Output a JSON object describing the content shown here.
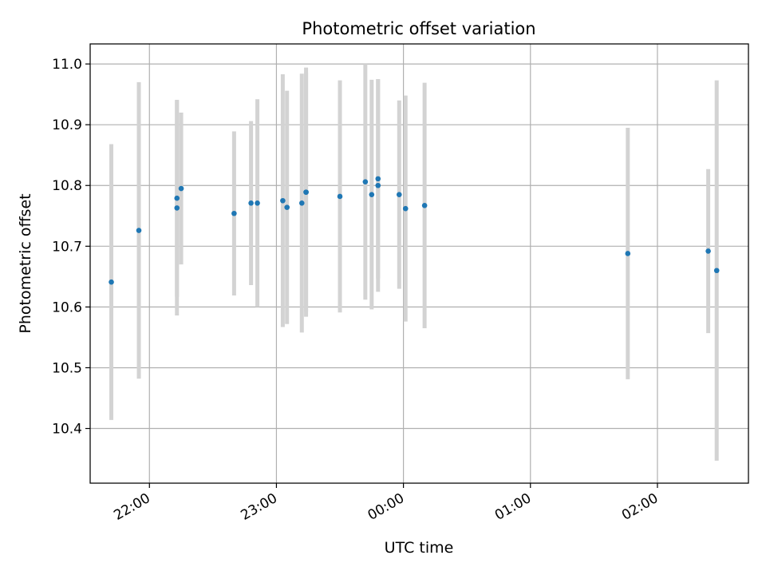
{
  "chart_data": {
    "type": "scatter",
    "title": "Photometric offset variation",
    "xlabel": "UTC time",
    "ylabel": "Photometric offset",
    "x_unit": "UTC clock time (h:mm, wraps after midnight)",
    "xlim": [
      "21:32",
      "02:43"
    ],
    "ylim": [
      10.31,
      11.033
    ],
    "grid": true,
    "legend": "none",
    "x_ticks": [
      "22:00",
      "23:00",
      "00:00",
      "01:00",
      "02:00"
    ],
    "y_ticks": [
      "10.4",
      "10.5",
      "10.6",
      "10.7",
      "10.8",
      "10.9",
      "11.0"
    ],
    "colors": {
      "points": "#1f77b4",
      "errorbars": "#d3d3d3",
      "grid": "#b0b0b0"
    },
    "series": [
      {
        "points": [
          {
            "x": "21:42",
            "y": 10.641,
            "err": 0.227
          },
          {
            "x": "21:55",
            "y": 10.726,
            "err": 0.244
          },
          {
            "x": "22:13",
            "y": 10.779,
            "err": 0.162
          },
          {
            "x": "22:13",
            "y": 10.763,
            "err": 0.177
          },
          {
            "x": "22:15",
            "y": 10.795,
            "err": 0.125
          },
          {
            "x": "22:40",
            "y": 10.754,
            "err": 0.135
          },
          {
            "x": "22:48",
            "y": 10.771,
            "err": 0.135
          },
          {
            "x": "22:51",
            "y": 10.771,
            "err": 0.171
          },
          {
            "x": "23:03",
            "y": 10.775,
            "err": 0.208
          },
          {
            "x": "23:05",
            "y": 10.764,
            "err": 0.192
          },
          {
            "x": "23:12",
            "y": 10.771,
            "err": 0.213
          },
          {
            "x": "23:14",
            "y": 10.789,
            "err": 0.205
          },
          {
            "x": "23:14",
            "y": 10.789,
            "err": 0.197
          },
          {
            "x": "23:30",
            "y": 10.782,
            "err": 0.191
          },
          {
            "x": "23:42",
            "y": 10.806,
            "err": 0.194
          },
          {
            "x": "23:45",
            "y": 10.785,
            "err": 0.189
          },
          {
            "x": "23:48",
            "y": 10.811,
            "err": 0.164
          },
          {
            "x": "23:48",
            "y": 10.8,
            "err": 0.175
          },
          {
            "x": "23:58",
            "y": 10.785,
            "err": 0.155
          },
          {
            "x": "00:01",
            "y": 10.762,
            "err": 0.186
          },
          {
            "x": "00:10",
            "y": 10.767,
            "err": 0.202
          },
          {
            "x": "01:46",
            "y": 10.688,
            "err": 0.207
          },
          {
            "x": "02:24",
            "y": 10.692,
            "err": 0.135
          },
          {
            "x": "02:28",
            "y": 10.66,
            "err": 0.313
          }
        ]
      }
    ]
  }
}
